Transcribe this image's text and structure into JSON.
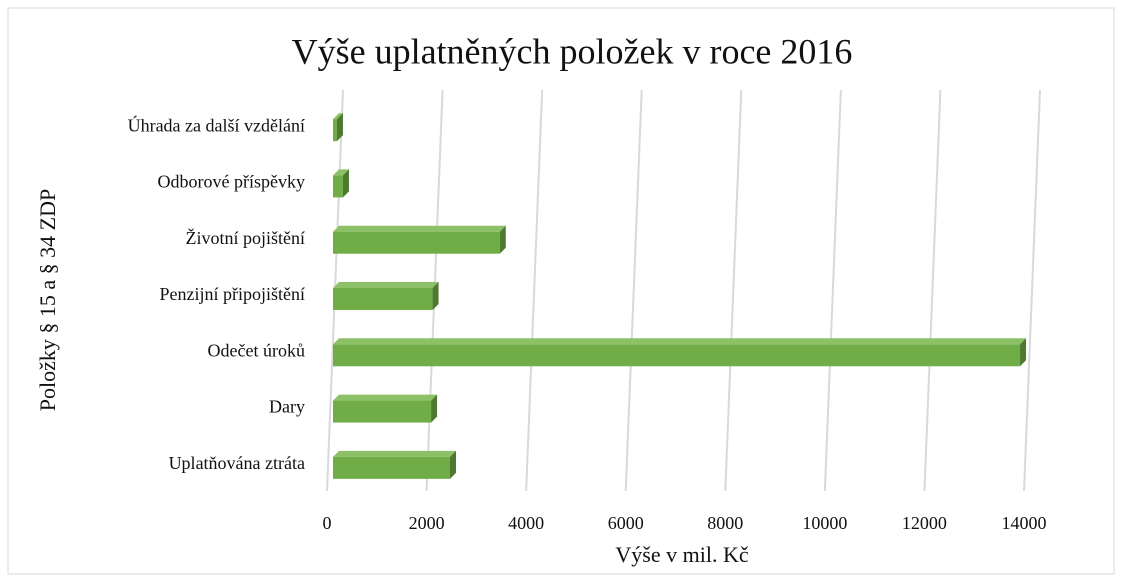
{
  "chart_data": {
    "type": "bar",
    "orientation": "horizontal",
    "title": "Výše uplatněných položek v roce 2016",
    "x_label": "Výše v mil. Kč",
    "y_label": "Položky § 15 a § 34 ZDP",
    "categories": [
      "Uplatňována ztráta",
      "Dary",
      "Odečet úroků",
      "Penzijní připojištění",
      "Životní pojištění",
      "Odborové příspěvky",
      "Úhrada za další vzdělání"
    ],
    "values": [
      2350,
      1970,
      13800,
      2000,
      3350,
      200,
      80
    ],
    "color": "#70ad47",
    "xlim": [
      0,
      14000
    ],
    "xticks": [
      0,
      2000,
      4000,
      6000,
      8000,
      10000,
      12000,
      14000
    ],
    "grid": true
  }
}
